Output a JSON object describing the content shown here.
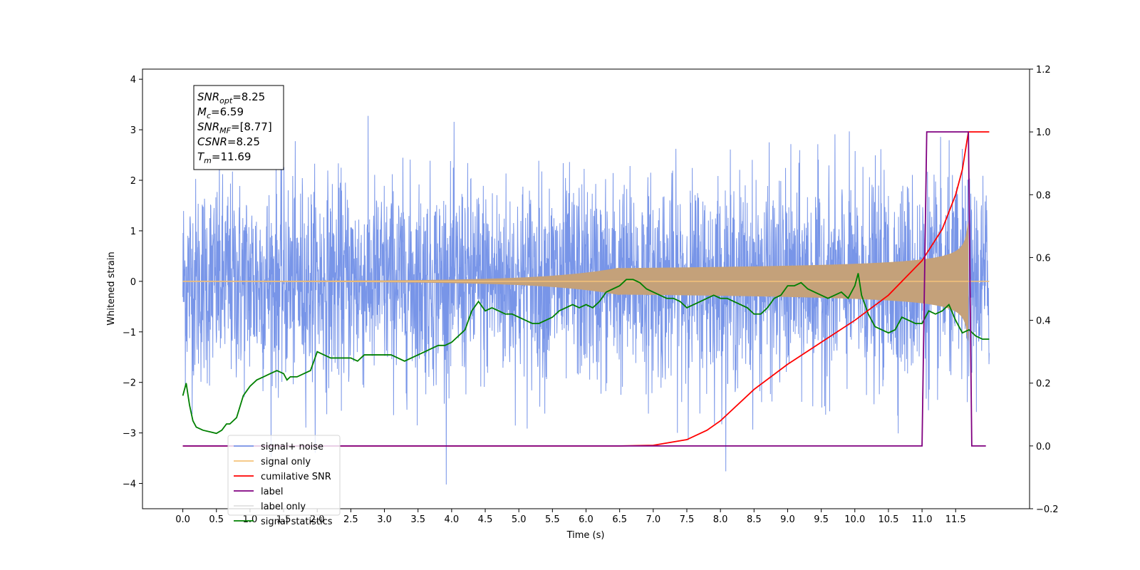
{
  "chart_data": {
    "type": "line",
    "xlabel": "Time (s)",
    "ylabel_left": "Whitened strain",
    "ylabel_right": "",
    "x_ticks": [
      "0.0",
      "0.5",
      "1.0",
      "1.5",
      "2.0",
      "2.5",
      "3.0",
      "3.5",
      "4.0",
      "4.5",
      "5.0",
      "5.5",
      "6.0",
      "6.5",
      "7.0",
      "7.5",
      "8.0",
      "8.5",
      "9.0",
      "9.5",
      "10.0",
      "10.5",
      "11.0",
      "11.5"
    ],
    "y_ticks_left": [
      "4",
      "3",
      "2",
      "1",
      "0",
      "−1",
      "−2",
      "−3",
      "−4"
    ],
    "y_ticks_right": [
      "1.2",
      "1.0",
      "0.8",
      "0.6",
      "0.4",
      "0.2",
      "0.0",
      "−0.2"
    ],
    "xlim": [
      -0.6,
      12.6
    ],
    "ylim_left": [
      -4.5,
      4.2
    ],
    "ylim_right": [
      -0.2,
      1.2
    ],
    "grid": false,
    "legend_placement": "lower-left",
    "info_box": {
      "lines": [
        {
          "base": "SNR",
          "sub": "opt",
          "value": "=8.25"
        },
        {
          "base": "M",
          "sub": "c",
          "value": "=6.59"
        },
        {
          "base": "SNR",
          "sub": "MF",
          "value": "=[8.77]"
        },
        {
          "base": "CSNR",
          "sub": "",
          "value": "=8.25"
        },
        {
          "base": "T",
          "sub": "m",
          "value": "=11.69"
        }
      ]
    },
    "series": [
      {
        "name": "signal+ noise",
        "color": "#7895e8",
        "axis": "left",
        "style": "noise",
        "x_range": [
          0.0,
          12.0
        ],
        "std": 1.0,
        "min": -4.1,
        "max": 3.8
      },
      {
        "name": "signal only",
        "color": "#f5c27a",
        "axis": "left",
        "style": "chirp",
        "x_range": [
          0.0,
          12.0
        ],
        "peak_time": 11.69,
        "peak_amplitude": 1.2
      },
      {
        "name": "cumilative SNR",
        "color": "#ff0000",
        "axis": "right",
        "x": [
          0.0,
          6.5,
          7.0,
          7.5,
          7.8,
          8.0,
          8.5,
          9.0,
          9.5,
          10.0,
          10.5,
          11.0,
          11.3,
          11.5,
          11.6,
          11.69,
          12.0
        ],
        "y": [
          0.0,
          0.0,
          0.002,
          0.02,
          0.05,
          0.08,
          0.18,
          0.26,
          0.33,
          0.4,
          0.48,
          0.59,
          0.69,
          0.8,
          0.88,
          1.0,
          1.0
        ]
      },
      {
        "name": "label",
        "color": "#800080",
        "axis": "right",
        "x": [
          0.0,
          11.0,
          11.07,
          11.69,
          11.74,
          11.95
        ],
        "y": [
          0.0,
          0.0,
          1.0,
          1.0,
          0.0,
          0.0
        ]
      },
      {
        "name": "label only",
        "color": "#e0e0e0",
        "axis": "right",
        "x": [],
        "y": []
      },
      {
        "name": "signal statistics",
        "color": "#008000",
        "axis": "right",
        "x": [
          0.0,
          0.05,
          0.1,
          0.15,
          0.2,
          0.3,
          0.4,
          0.5,
          0.58,
          0.65,
          0.7,
          0.8,
          0.9,
          1.0,
          1.1,
          1.2,
          1.3,
          1.4,
          1.5,
          1.55,
          1.6,
          1.7,
          1.8,
          1.9,
          2.0,
          2.1,
          2.2,
          2.3,
          2.4,
          2.5,
          2.6,
          2.7,
          2.8,
          2.9,
          3.0,
          3.1,
          3.2,
          3.3,
          3.4,
          3.5,
          3.6,
          3.7,
          3.8,
          3.9,
          4.0,
          4.1,
          4.2,
          4.3,
          4.4,
          4.5,
          4.6,
          4.7,
          4.8,
          4.9,
          5.0,
          5.1,
          5.2,
          5.3,
          5.4,
          5.5,
          5.6,
          5.7,
          5.8,
          5.9,
          6.0,
          6.1,
          6.2,
          6.3,
          6.4,
          6.5,
          6.6,
          6.7,
          6.8,
          6.9,
          7.0,
          7.1,
          7.2,
          7.3,
          7.4,
          7.5,
          7.6,
          7.7,
          7.8,
          7.9,
          8.0,
          8.1,
          8.2,
          8.3,
          8.4,
          8.5,
          8.6,
          8.7,
          8.8,
          8.9,
          9.0,
          9.1,
          9.2,
          9.3,
          9.4,
          9.5,
          9.6,
          9.7,
          9.8,
          9.9,
          10.0,
          10.05,
          10.1,
          10.2,
          10.3,
          10.4,
          10.5,
          10.6,
          10.7,
          10.8,
          10.9,
          11.0,
          11.1,
          11.2,
          11.3,
          11.4,
          11.5,
          11.6,
          11.7,
          11.8,
          11.9,
          12.0
        ],
        "y": [
          0.16,
          0.2,
          0.13,
          0.08,
          0.06,
          0.05,
          0.045,
          0.04,
          0.05,
          0.07,
          0.07,
          0.09,
          0.16,
          0.19,
          0.21,
          0.22,
          0.23,
          0.24,
          0.23,
          0.21,
          0.22,
          0.22,
          0.23,
          0.24,
          0.3,
          0.29,
          0.28,
          0.28,
          0.28,
          0.28,
          0.27,
          0.29,
          0.29,
          0.29,
          0.29,
          0.29,
          0.28,
          0.27,
          0.28,
          0.29,
          0.3,
          0.31,
          0.32,
          0.32,
          0.33,
          0.35,
          0.37,
          0.43,
          0.46,
          0.43,
          0.44,
          0.43,
          0.42,
          0.42,
          0.41,
          0.4,
          0.39,
          0.39,
          0.4,
          0.41,
          0.43,
          0.44,
          0.45,
          0.44,
          0.45,
          0.44,
          0.46,
          0.49,
          0.5,
          0.51,
          0.53,
          0.53,
          0.52,
          0.5,
          0.49,
          0.48,
          0.47,
          0.47,
          0.46,
          0.44,
          0.45,
          0.46,
          0.47,
          0.48,
          0.47,
          0.47,
          0.46,
          0.45,
          0.44,
          0.42,
          0.42,
          0.44,
          0.47,
          0.48,
          0.51,
          0.51,
          0.52,
          0.5,
          0.49,
          0.48,
          0.47,
          0.48,
          0.49,
          0.47,
          0.51,
          0.55,
          0.48,
          0.42,
          0.38,
          0.37,
          0.36,
          0.37,
          0.41,
          0.4,
          0.39,
          0.39,
          0.43,
          0.42,
          0.43,
          0.45,
          0.4,
          0.36,
          0.37,
          0.35,
          0.34,
          0.34
        ]
      }
    ]
  }
}
